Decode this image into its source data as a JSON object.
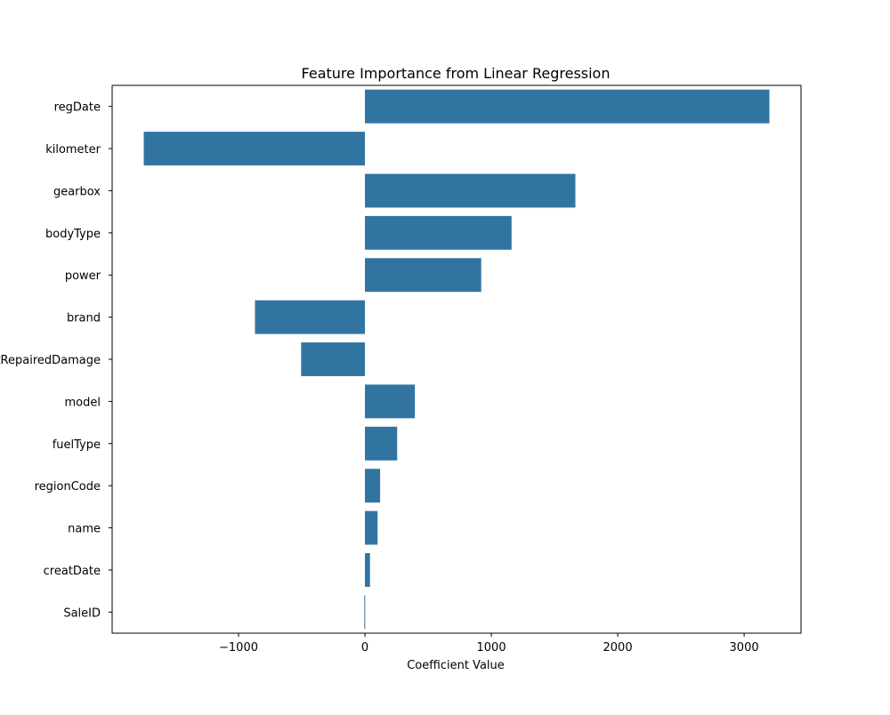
{
  "chart_data": {
    "type": "bar",
    "orientation": "horizontal",
    "title": "Feature Importance from Linear Regression",
    "xlabel": "Coefficient Value",
    "ylabel": "",
    "xlim": [
      -2000,
      3450
    ],
    "xticks": [
      -1000,
      0,
      1000,
      2000,
      3000
    ],
    "xtick_labels": [
      "−1000",
      "0",
      "1000",
      "2000",
      "3000"
    ],
    "grid": false,
    "legend": "none",
    "bar_color": "#3274a1",
    "categories": [
      "regDate",
      "kilometer",
      "gearbox",
      "bodyType",
      "power",
      "brand",
      "notRepairedDamage",
      "model",
      "fuelType",
      "regionCode",
      "name",
      "creatDate",
      "SaleID"
    ],
    "values": [
      3200,
      -1750,
      1665,
      1160,
      920,
      -870,
      -505,
      395,
      255,
      120,
      100,
      40,
      -5
    ]
  }
}
